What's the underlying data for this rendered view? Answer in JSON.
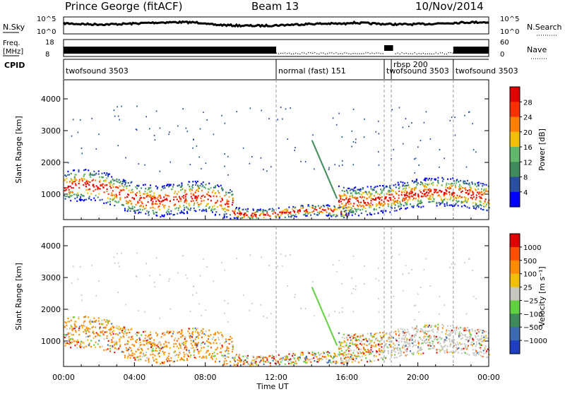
{
  "header": {
    "station": "Prince George (fitACF)",
    "beam": "Beam 13",
    "date": "10/Nov/2014"
  },
  "top_panels": {
    "nsky_label": "N.Sky",
    "nsky_ticks": [
      "10^5",
      "10^0"
    ],
    "nsearch_label": "N.Search",
    "nsearch_ticks": [
      "10^5",
      "10^0"
    ],
    "freq_label_1": "Freq.",
    "freq_label_2": "[MHz]",
    "freq_ticks": [
      "18",
      "8"
    ],
    "nave_label": "Nave",
    "nave_ticks": [
      "60",
      "0"
    ],
    "cpid_label": "CPID"
  },
  "cpid_segments": [
    {
      "label": "twofsound 3503",
      "start_hour": 0.0
    },
    {
      "label": "normal (fast) 151",
      "start_hour": 12.0
    },
    {
      "label": "twofsound 3503",
      "start_hour": 18.1
    },
    {
      "label": "rbsp 200",
      "start_hour": 18.5
    },
    {
      "label": "twofsound 3503",
      "start_hour": 22.0
    }
  ],
  "chart_data": [
    {
      "type": "heatmap",
      "title": "Power",
      "ylabel": "Slant Range [km]",
      "xlabel": "Time UT",
      "xlim_hours": [
        0,
        24
      ],
      "ylim": [
        200,
        4600
      ],
      "yticks": [
        "1000",
        "2000",
        "3000",
        "4000"
      ],
      "xticks": [
        "00:00",
        "04:00",
        "08:00",
        "12:00",
        "16:00",
        "20:00",
        "00:00"
      ],
      "colorbar": {
        "label": "Power [dB]",
        "ticks": [
          "28",
          "24",
          "20",
          "16",
          "12",
          "8",
          "4"
        ],
        "colors": [
          "#0000ff",
          "#2a4fa0",
          "#3e8a5a",
          "#62b86a",
          "#f0c000",
          "#ff8000",
          "#ff3000",
          "#e00000"
        ]
      }
    },
    {
      "type": "heatmap",
      "title": "Velocity",
      "ylabel": "Slant Range [km]",
      "xlabel": "Time UT",
      "xlim_hours": [
        0,
        24
      ],
      "ylim": [
        200,
        4600
      ],
      "yticks": [
        "1000",
        "2000",
        "3000",
        "4000"
      ],
      "xticks": [
        "00:00",
        "04:00",
        "08:00",
        "12:00",
        "16:00",
        "20:00",
        "00:00"
      ],
      "colorbar": {
        "label": "Velocity [m s⁻¹]",
        "ticks": [
          "1000",
          "500",
          "100",
          "25",
          "−25",
          "−100",
          "−500",
          "−1000"
        ],
        "colors": [
          "#1f3fc0",
          "#3a6ab0",
          "#3e8a5a",
          "#60d040",
          "#c8c8c0",
          "#f0c000",
          "#ff8c00",
          "#ff5000",
          "#e00000"
        ]
      }
    }
  ],
  "colors": {
    "grey_scatter": "#c8c8c0",
    "orange": "#ff8c00",
    "red": "#e00000",
    "green": "#60d040",
    "blue": "#2a4fa0"
  }
}
